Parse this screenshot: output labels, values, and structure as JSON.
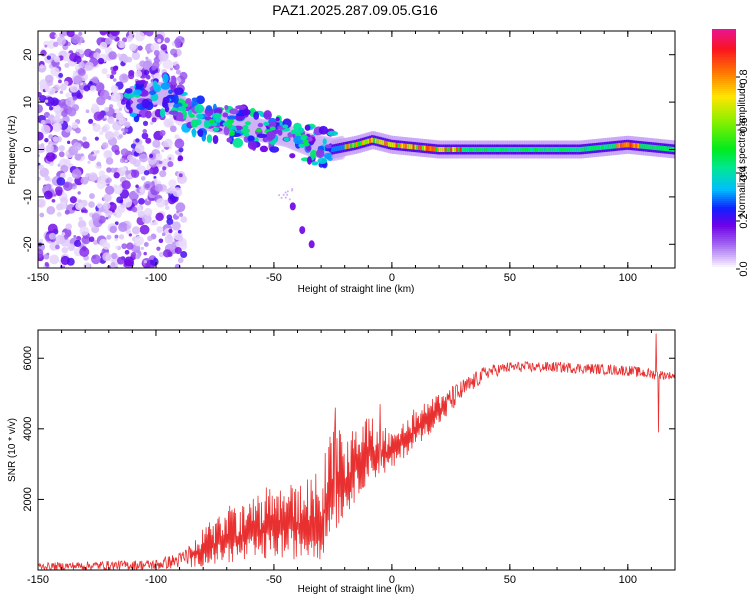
{
  "title": "PAZ1.2025.287.09.05.G16",
  "chart_data": [
    {
      "type": "heatmap",
      "title": "PAZ1.2025.287.09.05.G16",
      "xlabel": "Height of straight line (km)",
      "ylabel": "Frequency (Hz)",
      "xlim": [
        -150,
        120
      ],
      "ylim": [
        -25,
        25
      ],
      "xticks": [
        -150,
        -100,
        -50,
        0,
        50,
        100
      ],
      "yticks": [
        -20,
        -10,
        0,
        10,
        20
      ],
      "colorbar": {
        "label": "Normalized spectral amplitude",
        "range": [
          0,
          1
        ],
        "ticks": [
          0.0,
          0.2,
          0.4,
          0.6,
          0.8
        ]
      },
      "ridge": [
        {
          "x": -110,
          "y": 10
        },
        {
          "x": -100,
          "y": 12
        },
        {
          "x": -92,
          "y": 11
        },
        {
          "x": -85,
          "y": 7
        },
        {
          "x": -75,
          "y": 6
        },
        {
          "x": -65,
          "y": 5
        },
        {
          "x": -55,
          "y": 4
        },
        {
          "x": -45,
          "y": 3
        },
        {
          "x": -35,
          "y": 1
        },
        {
          "x": -25,
          "y": 0
        },
        {
          "x": -15,
          "y": 1
        },
        {
          "x": -8,
          "y": 2
        },
        {
          "x": 0,
          "y": 1
        },
        {
          "x": 20,
          "y": 0
        },
        {
          "x": 50,
          "y": 0
        },
        {
          "x": 80,
          "y": 0
        },
        {
          "x": 100,
          "y": 1
        },
        {
          "x": 120,
          "y": 0
        }
      ],
      "secondary_branch": [
        {
          "x": -42,
          "y": -12
        },
        {
          "x": -38,
          "y": -17
        },
        {
          "x": -34,
          "y": -20
        }
      ]
    },
    {
      "type": "line",
      "xlabel": "Height of straight line (km)",
      "ylabel": "SNR (10 * v/v)",
      "xlim": [
        -150,
        120
      ],
      "ylim": [
        0,
        6800
      ],
      "xticks": [
        -150,
        -100,
        -50,
        0,
        50,
        100
      ],
      "yticks": [
        2000,
        4000,
        6000
      ],
      "series": [
        {
          "name": "SNR",
          "color": "#e83030",
          "envelope": [
            {
              "x": -150,
              "low": 0,
              "high": 200
            },
            {
              "x": -100,
              "low": 0,
              "high": 300
            },
            {
              "x": -90,
              "low": 50,
              "high": 500
            },
            {
              "x": -80,
              "low": 100,
              "high": 1200
            },
            {
              "x": -70,
              "low": 200,
              "high": 1800
            },
            {
              "x": -60,
              "low": 200,
              "high": 2000
            },
            {
              "x": -50,
              "low": 300,
              "high": 2500
            },
            {
              "x": -40,
              "low": 300,
              "high": 2500
            },
            {
              "x": -30,
              "low": 300,
              "high": 2800
            },
            {
              "x": -25,
              "low": 1000,
              "high": 4500
            },
            {
              "x": -20,
              "low": 1500,
              "high": 3800
            },
            {
              "x": -10,
              "low": 2500,
              "high": 4400
            },
            {
              "x": 0,
              "low": 2800,
              "high": 4000
            },
            {
              "x": 10,
              "low": 3500,
              "high": 4600
            },
            {
              "x": 20,
              "low": 4100,
              "high": 5000
            },
            {
              "x": 30,
              "low": 4800,
              "high": 5400
            },
            {
              "x": 40,
              "low": 5400,
              "high": 5800
            },
            {
              "x": 50,
              "low": 5600,
              "high": 5900
            },
            {
              "x": 70,
              "low": 5600,
              "high": 5900
            },
            {
              "x": 100,
              "low": 5500,
              "high": 5800
            },
            {
              "x": 110,
              "low": 5400,
              "high": 5700
            },
            {
              "x": 120,
              "low": 5400,
              "high": 5600
            }
          ],
          "spikes": [
            {
              "x": -24,
              "y": 4600
            },
            {
              "x": -5,
              "y": 4700
            },
            {
              "x": 112,
              "y": 6700
            },
            {
              "x": 113,
              "y": 3900
            }
          ]
        }
      ]
    }
  ]
}
